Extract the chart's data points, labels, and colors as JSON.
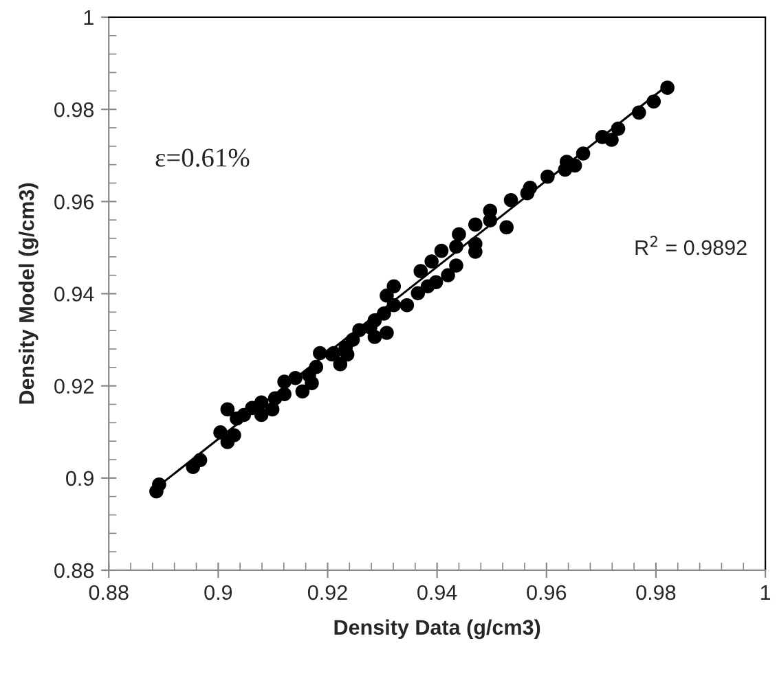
{
  "chart_data": {
    "type": "scatter",
    "xlabel": "Density Data (g/cm3)",
    "ylabel": "Density Model (g/cm3)",
    "annotations": [
      "ε=0.61%",
      "R$^{2}$ = 0.9892"
    ],
    "xlim": [
      0.88,
      1
    ],
    "ylim": [
      0.88,
      1
    ],
    "xticks": [
      0.88,
      0.9,
      0.92,
      0.94,
      0.96,
      0.98,
      1
    ],
    "yticks": [
      0.88,
      0.9,
      0.92,
      0.94,
      0.96,
      0.98,
      1
    ],
    "grid": false,
    "legend": false,
    "marker": "circle",
    "series": [
      {
        "color": "#000000",
        "x": [
          0.9821,
          0.9796,
          0.9769,
          0.9731,
          0.9719,
          0.9702,
          0.9667,
          0.9637,
          0.9652,
          0.9634,
          0.9602,
          0.957,
          0.9565,
          0.9535,
          0.9497,
          0.9497,
          0.9527,
          0.947,
          0.944,
          0.947,
          0.947,
          0.9435,
          0.9408,
          0.939,
          0.937,
          0.9435,
          0.942,
          0.9398,
          0.9383,
          0.9365,
          0.9321,
          0.9308,
          0.9321,
          0.9345,
          0.9303,
          0.9286,
          0.9278,
          0.9258,
          0.9246,
          0.9233,
          0.9211,
          0.9186,
          0.9308,
          0.9286,
          0.9236,
          0.9223,
          0.9208,
          0.9179,
          0.9166,
          0.9171,
          0.9141,
          0.9121,
          0.9154,
          0.9121,
          0.9104,
          0.9099,
          0.9079,
          0.9079,
          0.9062,
          0.9047,
          0.9034,
          0.9017,
          0.9004,
          0.9017,
          0.9029,
          0.8967,
          0.8954,
          0.8892,
          0.8887
        ],
        "values": [
          0.9847,
          0.9817,
          0.9793,
          0.9758,
          0.9734,
          0.974,
          0.9704,
          0.9686,
          0.9678,
          0.9669,
          0.9654,
          0.963,
          0.9618,
          0.9603,
          0.958,
          0.9559,
          0.9544,
          0.955,
          0.9529,
          0.9508,
          0.9491,
          0.9502,
          0.9493,
          0.947,
          0.9449,
          0.9461,
          0.944,
          0.9425,
          0.9416,
          0.9401,
          0.9416,
          0.9396,
          0.9375,
          0.9375,
          0.9357,
          0.9342,
          0.9327,
          0.9321,
          0.93,
          0.9283,
          0.9271,
          0.9271,
          0.9315,
          0.9306,
          0.9268,
          0.9247,
          0.9268,
          0.9241,
          0.9223,
          0.9206,
          0.9217,
          0.9209,
          0.9188,
          0.9182,
          0.9173,
          0.9149,
          0.9164,
          0.9137,
          0.9152,
          0.9137,
          0.9129,
          0.9149,
          0.9099,
          0.9078,
          0.9093,
          0.9039,
          0.9024,
          0.8986,
          0.8971
        ]
      },
      {
        "type": "line",
        "color": "#000000",
        "line_style": "solid",
        "marker": "none",
        "x": [
          0.8887,
          0.9821
        ],
        "values": [
          0.8979,
          0.9852
        ]
      }
    ]
  }
}
